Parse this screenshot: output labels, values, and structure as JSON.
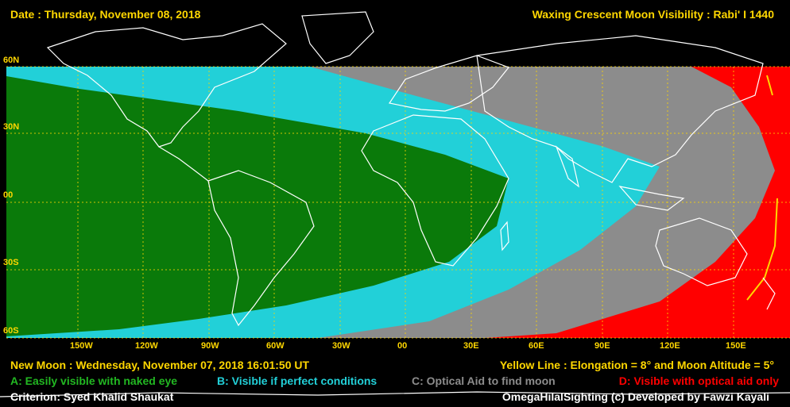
{
  "header": {
    "date": "Date : Thursday, November 08, 2018",
    "title": "Waxing Crescent Moon Visibility : Rabi' I 1440"
  },
  "map": {
    "lat_labels": [
      "60N",
      "30N",
      "00",
      "30S",
      "60S"
    ],
    "lon_labels": [
      "150W",
      "120W",
      "90W",
      "60W",
      "30W",
      "00",
      "30E",
      "60E",
      "90E",
      "120E",
      "150E"
    ],
    "zone_colors": {
      "A": "#0a7a0a",
      "B": "#22d0d8",
      "C": "#8c8c8c",
      "D": "#ff0000",
      "ocean": "#000000",
      "yellow_line": "#ffd700",
      "grid": "#ffd700",
      "coast": "#ffffff"
    }
  },
  "footer": {
    "new_moon": "New Moon : Wednesday, November 07, 2018  16:01:50  UT",
    "yellow_line": "Yellow Line : Elongation = 8° and Moon Altitude = 5°",
    "legend_a": "A: Easily visible with naked eye",
    "legend_b": "B: Visible if perfect conditions",
    "legend_c": "C: Optical Aid to find moon",
    "legend_d": "D: Visible with optical aid only",
    "criterion": "Criterion: Syed Khalid Shaukat",
    "credit": "OmegaHilalSighting  (c)  Developed by Fawzi Kayali"
  }
}
